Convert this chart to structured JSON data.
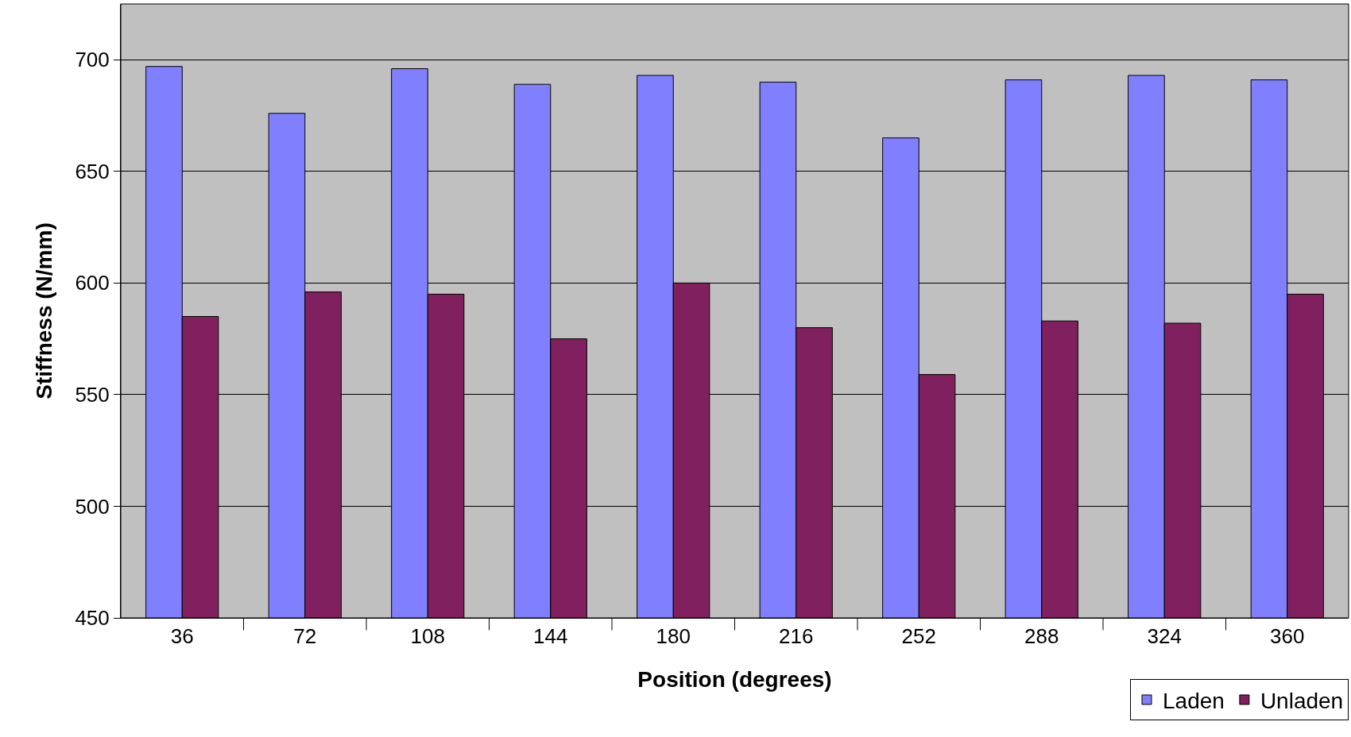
{
  "chart_data": {
    "type": "bar",
    "xlabel": "Position (degrees)",
    "ylabel": "Stiffness (N/mm)",
    "categories": [
      "36",
      "72",
      "108",
      "144",
      "180",
      "216",
      "252",
      "288",
      "324",
      "360"
    ],
    "series": [
      {
        "name": "Laden",
        "color": "#8080ff",
        "values": [
          697,
          676,
          696,
          689,
          693,
          690,
          665,
          691,
          693,
          691
        ]
      },
      {
        "name": "Unladen",
        "color": "#80205e",
        "values": [
          585,
          596,
          595,
          575,
          600,
          580,
          559,
          583,
          582,
          595
        ]
      }
    ],
    "ylim": [
      450,
      725
    ],
    "yticks": [
      450,
      500,
      550,
      600,
      650,
      700
    ],
    "grid": "y",
    "legend": "bottom right"
  }
}
